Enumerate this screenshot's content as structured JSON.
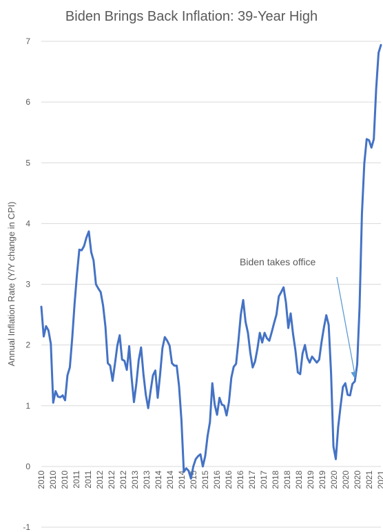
{
  "chart_data": {
    "type": "line",
    "title": "Biden Brings Back Inflation: 39-Year High",
    "ylabel": "Annual Inflation Rate (Y/Y change in CPI)",
    "xlabel": "",
    "ylim": [
      -1,
      7
    ],
    "yticks": [
      -1,
      0,
      1,
      2,
      3,
      4,
      5,
      6,
      7
    ],
    "grid": true,
    "line_color": "#4472C4",
    "xtick_labels": [
      "2010",
      "2010",
      "2010",
      "2011",
      "2011",
      "2012",
      "2012",
      "2012",
      "2013",
      "2013",
      "2014",
      "2014",
      "2014",
      "2015",
      "2015",
      "2016",
      "2016",
      "2016",
      "2017",
      "2017",
      "2018",
      "2018",
      "2018",
      "2019",
      "2019",
      "2020",
      "2020",
      "2020",
      "2021",
      "2021"
    ],
    "x_start": "2010-01",
    "x_end": "2021-11",
    "x": [
      0,
      1,
      2,
      3,
      4,
      5,
      6,
      7,
      8,
      9,
      10,
      11,
      12,
      13,
      14,
      15,
      16,
      17,
      18,
      19,
      20,
      21,
      22,
      23,
      24,
      25,
      26,
      27,
      28,
      29,
      30,
      31,
      32,
      33,
      34,
      35,
      36,
      37,
      38,
      39,
      40,
      41,
      42,
      43,
      44,
      45,
      46,
      47,
      48,
      49,
      50,
      51,
      52,
      53,
      54,
      55,
      56,
      57,
      58,
      59,
      60,
      61,
      62,
      63,
      64,
      65,
      66,
      67,
      68,
      69,
      70,
      71,
      72,
      73,
      74,
      75,
      76,
      77,
      78,
      79,
      80,
      81,
      82,
      83,
      84,
      85,
      86,
      87,
      88,
      89,
      90,
      91,
      92,
      93,
      94,
      95,
      96,
      97,
      98,
      99,
      100,
      101,
      102,
      103,
      104,
      105,
      106,
      107,
      108,
      109,
      110,
      111,
      112,
      113,
      114,
      115,
      116,
      117,
      118,
      119,
      120,
      121,
      122,
      123,
      124,
      125,
      126,
      127,
      128,
      129,
      130,
      131,
      132,
      133,
      134,
      135,
      136,
      137,
      138,
      139,
      140,
      141,
      142,
      143
    ],
    "series": [
      {
        "name": "",
        "values": [
          2.63,
          2.14,
          2.31,
          2.24,
          2.02,
          1.05,
          1.24,
          1.15,
          1.14,
          1.17,
          1.09,
          1.5,
          1.63,
          2.11,
          2.68,
          3.16,
          3.57,
          3.56,
          3.63,
          3.77,
          3.87,
          3.53,
          3.39,
          3.0,
          2.93,
          2.87,
          2.65,
          2.3,
          1.7,
          1.66,
          1.41,
          1.69,
          1.99,
          2.16,
          1.76,
          1.74,
          1.59,
          1.98,
          1.47,
          1.06,
          1.36,
          1.75,
          1.96,
          1.52,
          1.18,
          0.96,
          1.24,
          1.5,
          1.58,
          1.13,
          1.51,
          1.95,
          2.13,
          2.07,
          1.99,
          1.7,
          1.66,
          1.66,
          1.32,
          0.76,
          -0.09,
          -0.03,
          -0.07,
          -0.2,
          0.0,
          0.12,
          0.17,
          0.2,
          0.0,
          0.17,
          0.5,
          0.73,
          1.37,
          1.02,
          0.85,
          1.13,
          1.02,
          1.0,
          0.84,
          1.06,
          1.46,
          1.64,
          1.69,
          2.07,
          2.5,
          2.74,
          2.38,
          2.2,
          1.87,
          1.63,
          1.73,
          1.94,
          2.2,
          2.04,
          2.2,
          2.11,
          2.07,
          2.21,
          2.36,
          2.5,
          2.8,
          2.87,
          2.95,
          2.7,
          2.28,
          2.52,
          2.18,
          1.91,
          1.55,
          1.52,
          1.86,
          2.0,
          1.79,
          1.71,
          1.81,
          1.76,
          1.71,
          1.76,
          2.05,
          2.29,
          2.49,
          2.33,
          1.54,
          0.33,
          0.12,
          0.65,
          0.99,
          1.31,
          1.37,
          1.18,
          1.17,
          1.36,
          1.4,
          1.68,
          2.62,
          4.16,
          4.99,
          5.39,
          5.37,
          5.25,
          5.39,
          6.22,
          6.81,
          6.94
        ]
      }
    ],
    "annotation": {
      "text": "Biden takes office",
      "points_to_x": 132,
      "points_to_y": 1.4
    }
  }
}
